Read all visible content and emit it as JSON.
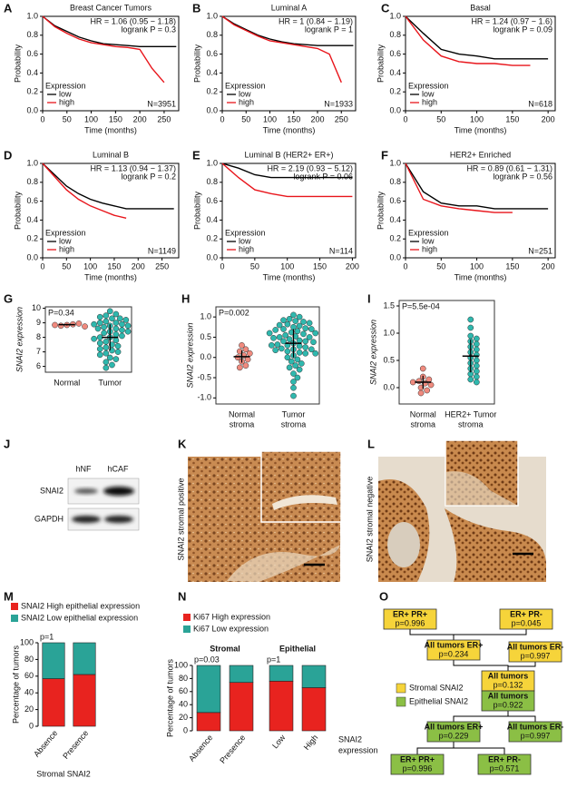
{
  "panel_labels": [
    "A",
    "B",
    "C",
    "D",
    "E",
    "F",
    "G",
    "H",
    "I",
    "J",
    "K",
    "L",
    "M",
    "N",
    "O"
  ],
  "chart_data": [
    {
      "type": "line",
      "title": "Breast Cancer Tumors",
      "annotations": [
        {
          "text": "HR = 1.06 (0.95 − 1.18)"
        },
        {
          "text": "logrank P = 0.3"
        }
      ],
      "n_label": "N=3951",
      "xlabel": "Time (months)",
      "ylabel": "Probability",
      "legend_title": "Expression",
      "x": [
        0,
        25,
        50,
        75,
        100,
        125,
        150,
        175,
        200,
        225,
        250,
        275
      ],
      "series": [
        {
          "name": "low",
          "color": "#000000",
          "values": [
            1,
            0.9,
            0.84,
            0.78,
            0.74,
            0.71,
            0.7,
            0.69,
            0.68,
            0.68,
            0.68,
            0.68
          ]
        },
        {
          "name": "high",
          "color": "#e8151b",
          "values": [
            1,
            0.89,
            0.82,
            0.76,
            0.72,
            0.7,
            0.68,
            0.67,
            0.65,
            0.45,
            0.3,
            null
          ]
        }
      ],
      "xlim": [
        0,
        280
      ],
      "ylim": [
        0,
        1
      ],
      "xticks": [
        0,
        50,
        100,
        150,
        200,
        250
      ],
      "yticks": [
        {
          "value": 0,
          "label": "0.0"
        },
        0.2,
        0.4,
        0.6,
        0.8,
        {
          "value": 1,
          "label": "1.0"
        }
      ]
    },
    {
      "type": "line",
      "title": "Luminal A",
      "annotations": [
        {
          "text": "HR = 1 (0.84 − 1.19)"
        },
        {
          "text": "logrank P = 1"
        }
      ],
      "n_label": "N=1933",
      "xlabel": "Time (months)",
      "ylabel": "Probability",
      "legend_title": "Expression",
      "x": [
        0,
        25,
        50,
        75,
        100,
        125,
        150,
        175,
        200,
        225,
        250,
        275
      ],
      "series": [
        {
          "name": "low",
          "color": "#000000",
          "values": [
            1,
            0.92,
            0.86,
            0.8,
            0.76,
            0.73,
            0.71,
            0.7,
            0.69,
            0.69,
            0.69,
            0.69
          ]
        },
        {
          "name": "high",
          "color": "#e8151b",
          "values": [
            1,
            0.91,
            0.85,
            0.79,
            0.74,
            0.72,
            0.7,
            0.68,
            0.66,
            0.6,
            0.3,
            null
          ]
        }
      ],
      "xlim": [
        0,
        280
      ],
      "ylim": [
        0,
        1
      ],
      "xticks": [
        0,
        50,
        100,
        150,
        200,
        250
      ],
      "yticks": [
        {
          "value": 0,
          "label": "0.0"
        },
        0.2,
        0.4,
        0.6,
        0.8,
        {
          "value": 1,
          "label": "1.0"
        }
      ]
    },
    {
      "type": "line",
      "title": "Basal",
      "annotations": [
        {
          "text": "HR = 1.24 (0.97 − 1.6)"
        },
        {
          "text": "logrank P = 0.09"
        }
      ],
      "n_label": "N=618",
      "xlabel": "Time (months)",
      "ylabel": "Probability",
      "legend_title": "Expression",
      "x": [
        0,
        25,
        50,
        75,
        100,
        125,
        150,
        175,
        200
      ],
      "series": [
        {
          "name": "low",
          "color": "#000000",
          "values": [
            1,
            0.82,
            0.65,
            0.6,
            0.58,
            0.55,
            0.55,
            0.55,
            0.55
          ]
        },
        {
          "name": "high",
          "color": "#e8151b",
          "values": [
            1,
            0.75,
            0.58,
            0.52,
            0.5,
            0.5,
            0.48,
            0.48,
            null
          ]
        }
      ],
      "xlim": [
        0,
        210
      ],
      "ylim": [
        0,
        1
      ],
      "xticks": [
        0,
        50,
        100,
        150,
        200
      ],
      "yticks": [
        {
          "value": 0,
          "label": "0.0"
        },
        0.2,
        0.4,
        0.6,
        0.8,
        {
          "value": 1,
          "label": "1.0"
        }
      ]
    },
    {
      "type": "line",
      "title": "Luminal B",
      "annotations": [
        {
          "text": "HR = 1.13 (0.94 − 1.37)"
        },
        {
          "text": "logrank P = 0.2"
        }
      ],
      "n_label": "N=1149",
      "xlabel": "Time (months)",
      "ylabel": "Probability",
      "legend_title": "Expression",
      "x": [
        0,
        25,
        50,
        75,
        100,
        125,
        150,
        175,
        200,
        225,
        250,
        275
      ],
      "series": [
        {
          "name": "low",
          "color": "#000000",
          "values": [
            1,
            0.88,
            0.76,
            0.68,
            0.62,
            0.58,
            0.55,
            0.52,
            0.52,
            0.52,
            0.52,
            0.52
          ]
        },
        {
          "name": "high",
          "color": "#e8151b",
          "values": [
            1,
            0.86,
            0.72,
            0.62,
            0.55,
            0.5,
            0.45,
            0.42,
            null,
            null,
            null,
            null
          ]
        }
      ],
      "xlim": [
        0,
        285
      ],
      "ylim": [
        0,
        1
      ],
      "xticks": [
        0,
        50,
        100,
        150,
        200,
        250
      ],
      "yticks": [
        {
          "value": 0,
          "label": "0.0"
        },
        0.2,
        0.4,
        0.6,
        0.8,
        {
          "value": 1,
          "label": "1.0"
        }
      ]
    },
    {
      "type": "line",
      "title": "Luminal B (HER2+ ER+)",
      "annotations": [
        {
          "text": "HR = 2.19 (0.93 − 5.12)"
        },
        {
          "text": "logrank P = 0.06",
          "color": "#5b3fb5"
        }
      ],
      "n_label": "N=114",
      "xlabel": "Time (months)",
      "ylabel": "Probability",
      "legend_title": "Expression",
      "x": [
        0,
        25,
        50,
        75,
        100,
        125,
        150,
        175,
        200
      ],
      "series": [
        {
          "name": "low",
          "color": "#000000",
          "values": [
            1,
            0.95,
            0.88,
            0.85,
            0.85,
            0.85,
            0.85,
            0.85,
            0.85
          ]
        },
        {
          "name": "high",
          "color": "#e8151b",
          "values": [
            1,
            0.85,
            0.72,
            0.68,
            0.65,
            0.65,
            0.65,
            0.65,
            0.65
          ]
        }
      ],
      "xlim": [
        0,
        205
      ],
      "ylim": [
        0,
        1
      ],
      "xticks": [
        0,
        50,
        100,
        150,
        200
      ],
      "yticks": [
        {
          "value": 0,
          "label": "0.0"
        },
        0.2,
        0.4,
        0.6,
        0.8,
        {
          "value": 1,
          "label": "1.0"
        }
      ]
    },
    {
      "type": "line",
      "title": "HER2+ Enriched",
      "annotations": [
        {
          "text": "HR = 0.89 (0.61 − 1.31)"
        },
        {
          "text": "logrank P = 0.56"
        }
      ],
      "n_label": "N=251",
      "xlabel": "Time (months)",
      "ylabel": "Probability",
      "legend_title": "Expression",
      "x": [
        0,
        25,
        50,
        75,
        100,
        125,
        150,
        175,
        200
      ],
      "series": [
        {
          "name": "low",
          "color": "#000000",
          "values": [
            1,
            0.7,
            0.58,
            0.55,
            0.55,
            0.52,
            0.52,
            0.52,
            0.52
          ]
        },
        {
          "name": "high",
          "color": "#e8151b",
          "values": [
            1,
            0.62,
            0.55,
            0.52,
            0.5,
            0.48,
            0.48,
            null,
            null
          ]
        }
      ],
      "xlim": [
        0,
        210
      ],
      "ylim": [
        0,
        1
      ],
      "xticks": [
        0,
        50,
        100,
        150,
        200
      ],
      "yticks": [
        {
          "value": 0,
          "label": "0.0"
        },
        0.2,
        0.4,
        0.6,
        0.8,
        {
          "value": 1,
          "label": "1.0"
        }
      ]
    },
    {
      "type": "dot",
      "annotation": "P=0.34",
      "ylabel": "SNAI2 expression",
      "categories": [
        [
          "Normal"
        ],
        [
          "Tumor"
        ]
      ],
      "colors": [
        "#f08a7e",
        "#2fb8ae"
      ],
      "values": [
        [
          8.85,
          8.9,
          8.8,
          8.95,
          8.85,
          8.75
        ],
        [
          9.8,
          9.6,
          9.5,
          9.4,
          9.3,
          9.3,
          9.2,
          9.1,
          9.0,
          9.0,
          8.9,
          8.9,
          8.8,
          8.8,
          8.7,
          8.6,
          8.6,
          8.5,
          8.4,
          8.4,
          8.3,
          8.2,
          8.1,
          8.0,
          8.0,
          7.9,
          7.8,
          7.7,
          7.6,
          7.5,
          7.4,
          7.3,
          7.2,
          7.1,
          7.0,
          6.9,
          6.8,
          6.6,
          6.5,
          6.3,
          6.1,
          5.9
        ]
      ],
      "means": [
        8.87,
        8.0
      ],
      "sds": [
        0.06,
        0.9
      ],
      "ylim": [
        5.6,
        10.1
      ],
      "yticks": [
        6,
        7,
        8,
        9,
        10
      ]
    },
    {
      "type": "dot",
      "annotation": "P=0.002",
      "ylabel": "SNAI2 expression",
      "categories": [
        [
          "Normal",
          "stroma"
        ],
        [
          "Tumor",
          "stroma"
        ]
      ],
      "colors": [
        "#f08a7e",
        "#2fb8ae"
      ],
      "values": [
        [
          0.3,
          0.2,
          0.15,
          0.1,
          0.05,
          0.0,
          -0.05,
          -0.1,
          -0.2,
          -0.25
        ],
        [
          1.05,
          1.0,
          0.95,
          0.92,
          0.9,
          0.88,
          0.85,
          0.82,
          0.8,
          0.78,
          0.75,
          0.72,
          0.7,
          0.7,
          0.68,
          0.65,
          0.62,
          0.6,
          0.6,
          0.58,
          0.55,
          0.52,
          0.5,
          0.5,
          0.48,
          0.45,
          0.42,
          0.4,
          0.4,
          0.38,
          0.35,
          0.32,
          0.3,
          0.3,
          0.28,
          0.25,
          0.22,
          0.2,
          0.2,
          0.18,
          0.15,
          0.12,
          0.1,
          0.1,
          0.05,
          0.0,
          -0.05,
          -0.1,
          -0.15,
          -0.2,
          -0.25,
          -0.3,
          -0.4,
          -0.5,
          -0.6,
          -0.75,
          -0.95
        ]
      ],
      "means": [
        0.02,
        0.35
      ],
      "sds": [
        0.15,
        0.35
      ],
      "ylim": [
        -1.15,
        1.25
      ],
      "yticks": [
        {
          "value": -1,
          "label": "-1.0"
        },
        -0.5,
        {
          "value": 0,
          "label": "0.0"
        },
        0.5,
        {
          "value": 1,
          "label": "1.0"
        }
      ]
    },
    {
      "type": "dot",
      "annotation": "P=5.5e-04",
      "ylabel": "SNAI2 expression",
      "categories": [
        [
          "Normal",
          "stroma"
        ],
        [
          "HER2+ Tumor",
          "stroma"
        ]
      ],
      "colors": [
        "#f08a7e",
        "#2fb8ae"
      ],
      "values": [
        [
          0.35,
          0.2,
          0.15,
          0.12,
          0.1,
          0.08,
          0.05,
          0.0,
          -0.05,
          -0.1
        ],
        [
          1.25,
          1.1,
          0.95,
          0.9,
          0.85,
          0.8,
          0.75,
          0.7,
          0.65,
          0.6,
          0.55,
          0.5,
          0.45,
          0.4,
          0.35,
          0.3,
          0.25,
          0.2,
          0.15,
          0.1
        ]
      ],
      "means": [
        0.1,
        0.58
      ],
      "sds": [
        0.12,
        0.3
      ],
      "ylim": [
        -0.3,
        1.6
      ],
      "yticks": [
        {
          "value": 0,
          "label": "0.0"
        },
        0.5,
        {
          "value": 1,
          "label": "1.0"
        },
        1.5
      ]
    },
    {
      "type": "stacked_bar",
      "annotations": [
        "p=1"
      ],
      "ylabel": "Percentage of tumors",
      "xlabel": [
        "Stromal SNAI2"
      ],
      "categories": [
        "Absence",
        "Presence"
      ],
      "series": [
        {
          "name": "SNAI2 High epithelial expression",
          "color": "#e8231f",
          "values": [
            57,
            62
          ]
        },
        {
          "name": "SNAI2 Low epithelial expression",
          "color": "#2aa397",
          "values": [
            43,
            38
          ]
        }
      ],
      "ylim": [
        0,
        100
      ],
      "yticks": [
        0,
        20,
        40,
        60,
        80,
        100
      ]
    },
    {
      "type": "stacked_bar",
      "groups": [
        "Stromal",
        "Epithelial"
      ],
      "annotations": [
        "p=0.03",
        "p=1"
      ],
      "ylabel": "Percentage of tumors",
      "xlabel": [
        "SNAI2",
        "expression"
      ],
      "categories": [
        "Absence",
        "Presence",
        "Low",
        "High"
      ],
      "series": [
        {
          "name": "Ki67 High expression",
          "color": "#e8231f",
          "values": [
            28,
            74,
            76,
            66
          ]
        },
        {
          "name": "Ki67 Low expression",
          "color": "#2aa397",
          "values": [
            72,
            26,
            24,
            34
          ]
        }
      ],
      "ylim": [
        0,
        100
      ],
      "yticks": [
        0,
        20,
        40,
        60,
        80,
        100
      ]
    }
  ],
  "blot": {
    "lanes": [
      "hNF",
      "hCAF"
    ],
    "rows": [
      "SNAI2",
      "GAPDH"
    ]
  },
  "images": [
    "SNAI2 stromal positive",
    "SNAI2 stromal negative"
  ],
  "tree": {
    "legend": [
      {
        "label": "Stromal SNAI2",
        "color": "#f6d43a"
      },
      {
        "label": "Epithelial SNAI2",
        "color": "#8bbf45"
      }
    ],
    "nodes": [
      {
        "label": "ER+ PR+",
        "p": "p=0.996",
        "group": 0
      },
      {
        "label": "ER+ PR-",
        "p": "p=0.045",
        "group": 0,
        "p_color": "#e02020"
      },
      {
        "label": "All tumors ER+",
        "p": "p=0.234",
        "group": 0
      },
      {
        "label": "All tumors ER-",
        "p": "p=0.997",
        "group": 0
      },
      {
        "label": "All tumors",
        "p": "p=0.132",
        "group": 0
      },
      {
        "label": "All tumors",
        "p": "p=0.922",
        "group": 1
      },
      {
        "label": "All tumors ER+",
        "p": "p=0.229",
        "group": 1
      },
      {
        "label": "All tumors ER-",
        "p": "p=0.997",
        "group": 1
      },
      {
        "label": "ER+ PR+",
        "p": "p=0.996",
        "group": 1
      },
      {
        "label": "ER+ PR-",
        "p": "p=0.571",
        "group": 1
      }
    ]
  }
}
